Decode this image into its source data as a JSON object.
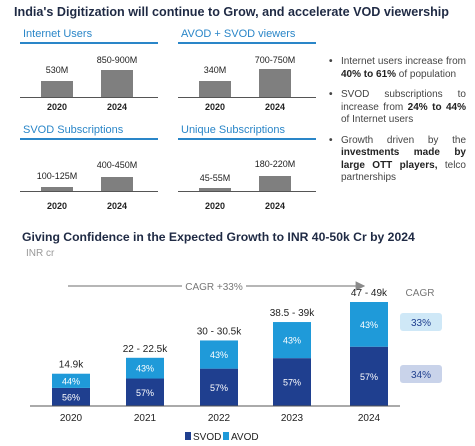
{
  "header": {
    "title": "India's Digitization will continue to Grow, and accelerate VOD viewership"
  },
  "mini_charts": [
    {
      "title": "Internet Users",
      "categories": [
        "2020",
        "2024"
      ],
      "labels": [
        "530M",
        "850-900M"
      ],
      "values": [
        530,
        875
      ]
    },
    {
      "title": "AVOD + SVOD viewers",
      "categories": [
        "2020",
        "2024"
      ],
      "labels": [
        "340M",
        "700-750M"
      ],
      "values": [
        340,
        725
      ]
    },
    {
      "title": "SVOD Subscriptions",
      "categories": [
        "2020",
        "2024"
      ],
      "labels": [
        "100-125M",
        "400-450M"
      ],
      "values": [
        112.5,
        425
      ]
    },
    {
      "title": "Unique Subscriptions",
      "categories": [
        "2020",
        "2024"
      ],
      "labels": [
        "45-55M",
        "180-220M"
      ],
      "values": [
        50,
        200
      ]
    }
  ],
  "bullets": [
    {
      "parts": [
        "Internet users increase from ",
        "40% to 61%",
        " of population"
      ]
    },
    {
      "parts": [
        "SVOD subscriptions to increase from ",
        "24% to 44%",
        " of Internet users"
      ]
    },
    {
      "parts": [
        "Growth driven by the ",
        "investments made by large OTT players,",
        " telco partnerships"
      ]
    }
  ],
  "section2": {
    "title": "Giving Confidence in the Expected Growth to INR 40-50k Cr by 2024",
    "unit": "INR cr"
  },
  "chart_data": {
    "type": "bar",
    "stacked": true,
    "categories": [
      "2020",
      "2021",
      "2022",
      "2023",
      "2024"
    ],
    "totals": [
      14.9,
      22.25,
      30.25,
      38.75,
      48
    ],
    "total_labels": [
      "14.9k",
      "22 - 22.5k",
      "30 - 30.5k",
      "38.5 - 39k",
      "47 - 49k"
    ],
    "series": [
      {
        "name": "SVOD",
        "color": "#1f3f8f",
        "share_labels": [
          "56%",
          "57%",
          "57%",
          "57%",
          "57%"
        ]
      },
      {
        "name": "AVOD",
        "color": "#1f9ad9",
        "share_labels": [
          "44%",
          "43%",
          "43%",
          "43%",
          "43%"
        ]
      }
    ],
    "cagr_label": "CAGR +33%",
    "cagr_header": "CAGR",
    "cagr_values": [
      {
        "series": "AVOD",
        "label": "33%",
        "bg": "#cfe8f7"
      },
      {
        "series": "SVOD",
        "label": "34%",
        "bg": "#c9d3ea"
      }
    ],
    "legend": [
      "SVOD",
      "AVOD"
    ]
  }
}
